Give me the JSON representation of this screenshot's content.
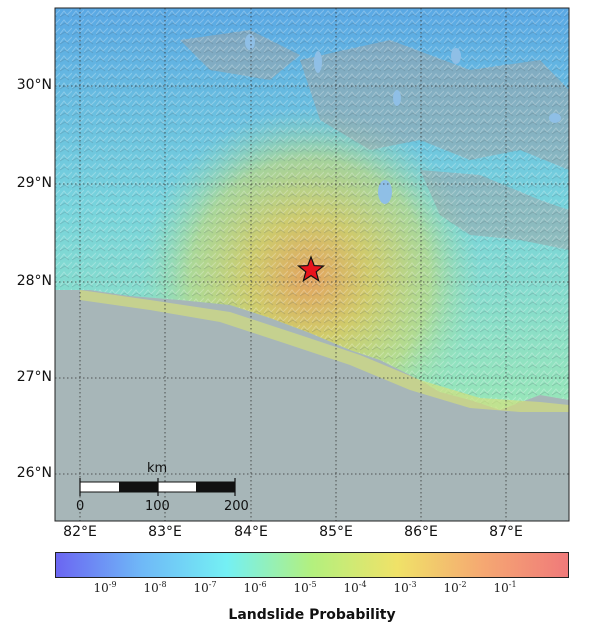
{
  "map": {
    "lat_labels": [
      "30°N",
      "29°N",
      "28°N",
      "27°N",
      "26°N"
    ],
    "lon_labels": [
      "82°E",
      "83°E",
      "84°E",
      "85°E",
      "86°E",
      "87°E"
    ],
    "epicenter": {
      "lon": 84.7,
      "lat": 28.15,
      "marker": "red-star"
    }
  },
  "scalebar": {
    "unit": "km",
    "ticks": [
      "0",
      "100",
      "200"
    ]
  },
  "colorbar": {
    "title": "Landslide Probability",
    "tick_exponents": [
      "-9",
      "-8",
      "-7",
      "-6",
      "-5",
      "-4",
      "-3",
      "-2",
      "-1"
    ],
    "colors": [
      "#6b66f2",
      "#6fb8f7",
      "#74f0f4",
      "#b3f07e",
      "#f0e268",
      "#f5a872",
      "#f07a7a"
    ]
  }
}
